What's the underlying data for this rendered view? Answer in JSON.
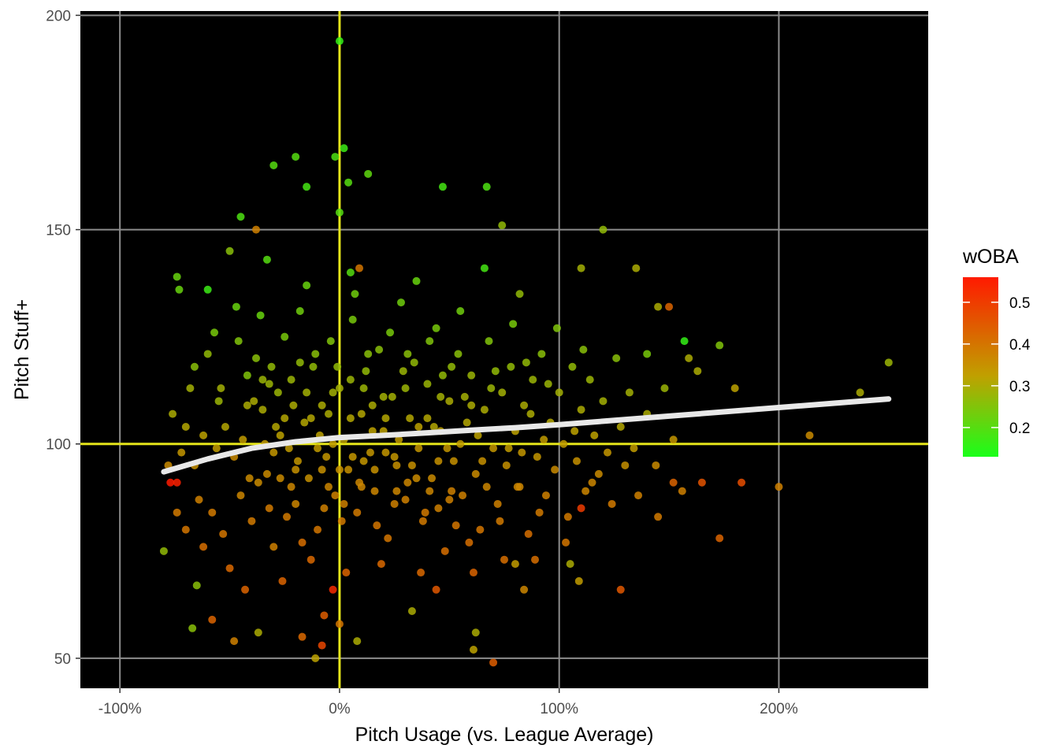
{
  "chart_data": {
    "type": "scatter",
    "xlabel": "Pitch Usage (vs. League Average)",
    "ylabel": "Pitch Stuff+",
    "xlim": [
      -1.18,
      2.68
    ],
    "ylim": [
      43,
      201
    ],
    "x_ticks": [
      {
        "value": -1,
        "label": "-100%"
      },
      {
        "value": 0,
        "label": "0%"
      },
      {
        "value": 1,
        "label": "100%"
      },
      {
        "value": 2,
        "label": "200%"
      }
    ],
    "y_ticks": [
      {
        "value": 50,
        "label": "50"
      },
      {
        "value": 100,
        "label": "100"
      },
      {
        "value": 150,
        "label": "150"
      },
      {
        "value": 200,
        "label": "200"
      }
    ],
    "grid": true,
    "background": "#000000",
    "gridline_color": "#8c8c8c",
    "reference_lines": {
      "x": 0,
      "y": 100,
      "color": "#e5e51a"
    },
    "smooth_line": {
      "color": "#e8e8e8",
      "points": [
        [
          -0.8,
          93.5
        ],
        [
          -0.6,
          96.5
        ],
        [
          -0.4,
          99.0
        ],
        [
          -0.2,
          100.5
        ],
        [
          0.0,
          101.5
        ],
        [
          0.2,
          102.0
        ],
        [
          0.4,
          102.6
        ],
        [
          0.6,
          103.2
        ],
        [
          0.8,
          103.8
        ],
        [
          1.0,
          104.5
        ],
        [
          1.2,
          105.3
        ],
        [
          1.5,
          106.5
        ],
        [
          2.0,
          108.5
        ],
        [
          2.5,
          110.5
        ]
      ]
    },
    "color_scale": {
      "title": "wOBA",
      "min": 0.13,
      "max": 0.56,
      "low_color": "#1aff1a",
      "mid_color": "#c0a000",
      "high_color": "#ff1a00",
      "ticks": [
        {
          "value": 0.2,
          "label": "0.2"
        },
        {
          "value": 0.3,
          "label": "0.3"
        },
        {
          "value": 0.4,
          "label": "0.4"
        },
        {
          "value": 0.5,
          "label": "0.5"
        }
      ]
    },
    "points": [
      [
        0.0,
        194,
        0.16
      ],
      [
        0.02,
        169,
        0.17
      ],
      [
        -0.02,
        167,
        0.19
      ],
      [
        -0.2,
        167,
        0.2
      ],
      [
        -0.3,
        165,
        0.2
      ],
      [
        0.13,
        163,
        0.21
      ],
      [
        0.04,
        161,
        0.2
      ],
      [
        -0.15,
        160,
        0.18
      ],
      [
        0.47,
        160,
        0.18
      ],
      [
        0.67,
        160,
        0.19
      ],
      [
        -0.45,
        153,
        0.19
      ],
      [
        0.0,
        154,
        0.2
      ],
      [
        0.74,
        151,
        0.27
      ],
      [
        1.2,
        150,
        0.27
      ],
      [
        -0.38,
        150,
        0.38
      ],
      [
        -0.5,
        145,
        0.26
      ],
      [
        -0.33,
        143,
        0.2
      ],
      [
        0.05,
        140,
        0.2
      ],
      [
        0.09,
        141,
        0.4
      ],
      [
        -0.74,
        139,
        0.22
      ],
      [
        -0.6,
        136,
        0.17
      ],
      [
        -0.73,
        136,
        0.22
      ],
      [
        0.66,
        141,
        0.18
      ],
      [
        0.82,
        135,
        0.27
      ],
      [
        1.1,
        141,
        0.29
      ],
      [
        1.35,
        141,
        0.3
      ],
      [
        1.45,
        132,
        0.3
      ],
      [
        1.5,
        132,
        0.43
      ],
      [
        1.57,
        124,
        0.16
      ],
      [
        1.73,
        123,
        0.25
      ],
      [
        1.4,
        121,
        0.24
      ],
      [
        1.59,
        120,
        0.3
      ],
      [
        1.63,
        117,
        0.3
      ],
      [
        1.8,
        113,
        0.32
      ],
      [
        2.37,
        112,
        0.3
      ],
      [
        2.5,
        119,
        0.28
      ],
      [
        2.14,
        102,
        0.36
      ],
      [
        2.0,
        90,
        0.38
      ],
      [
        1.83,
        91,
        0.47
      ],
      [
        1.73,
        78,
        0.43
      ],
      [
        1.65,
        91,
        0.46
      ],
      [
        1.52,
        91,
        0.43
      ],
      [
        1.28,
        66,
        0.45
      ],
      [
        1.45,
        83,
        0.39
      ],
      [
        1.1,
        85,
        0.5
      ],
      [
        -0.8,
        75,
        0.27
      ],
      [
        -0.77,
        91,
        0.56
      ],
      [
        -0.74,
        91,
        0.55
      ],
      [
        -0.67,
        57,
        0.26
      ],
      [
        -0.65,
        67,
        0.26
      ],
      [
        -0.58,
        59,
        0.43
      ],
      [
        -0.48,
        54,
        0.38
      ],
      [
        -0.37,
        56,
        0.3
      ],
      [
        -0.11,
        50,
        0.32
      ],
      [
        -0.08,
        53,
        0.48
      ],
      [
        -0.17,
        55,
        0.42
      ],
      [
        -0.07,
        60,
        0.44
      ],
      [
        0.0,
        58,
        0.4
      ],
      [
        0.08,
        54,
        0.3
      ],
      [
        0.62,
        56,
        0.3
      ],
      [
        0.61,
        52,
        0.32
      ],
      [
        0.7,
        49,
        0.44
      ],
      [
        -0.03,
        66,
        0.53
      ],
      [
        0.33,
        61,
        0.3
      ],
      [
        0.44,
        66,
        0.45
      ],
      [
        0.8,
        72,
        0.33
      ],
      [
        0.84,
        66,
        0.37
      ],
      [
        1.05,
        72,
        0.3
      ],
      [
        1.09,
        68,
        0.33
      ],
      [
        -0.55,
        110,
        0.28
      ],
      [
        -0.52,
        104,
        0.31
      ],
      [
        -0.48,
        97,
        0.36
      ],
      [
        -0.45,
        88,
        0.37
      ],
      [
        -0.42,
        116,
        0.25
      ],
      [
        -0.4,
        82,
        0.39
      ],
      [
        -0.38,
        120,
        0.26
      ],
      [
        -0.35,
        108,
        0.3
      ],
      [
        -0.33,
        93,
        0.36
      ],
      [
        -0.3,
        76,
        0.38
      ],
      [
        -0.28,
        112,
        0.28
      ],
      [
        -0.25,
        125,
        0.24
      ],
      [
        -0.23,
        99,
        0.33
      ],
      [
        -0.2,
        86,
        0.37
      ],
      [
        -0.18,
        131,
        0.23
      ],
      [
        -0.16,
        105,
        0.31
      ],
      [
        -0.14,
        92,
        0.35
      ],
      [
        -0.12,
        118,
        0.27
      ],
      [
        -0.1,
        80,
        0.4
      ],
      [
        -0.08,
        109,
        0.3
      ],
      [
        -0.06,
        97,
        0.34
      ],
      [
        -0.04,
        124,
        0.25
      ],
      [
        -0.02,
        88,
        0.38
      ],
      [
        0.0,
        113,
        0.29
      ],
      [
        0.02,
        101,
        0.32
      ],
      [
        0.04,
        94,
        0.35
      ],
      [
        0.06,
        129,
        0.24
      ],
      [
        0.08,
        84,
        0.39
      ],
      [
        0.1,
        107,
        0.31
      ],
      [
        0.12,
        117,
        0.27
      ],
      [
        0.14,
        98,
        0.34
      ],
      [
        0.16,
        89,
        0.37
      ],
      [
        0.18,
        122,
        0.26
      ],
      [
        0.2,
        103,
        0.32
      ],
      [
        0.22,
        78,
        0.4
      ],
      [
        0.24,
        111,
        0.29
      ],
      [
        0.26,
        95,
        0.35
      ],
      [
        0.28,
        133,
        0.23
      ],
      [
        0.3,
        87,
        0.38
      ],
      [
        0.32,
        106,
        0.31
      ],
      [
        0.34,
        119,
        0.27
      ],
      [
        0.36,
        99,
        0.34
      ],
      [
        0.38,
        82,
        0.39
      ],
      [
        0.4,
        114,
        0.28
      ],
      [
        0.42,
        92,
        0.36
      ],
      [
        0.44,
        127,
        0.24
      ],
      [
        0.46,
        103,
        0.32
      ],
      [
        0.48,
        75,
        0.41
      ],
      [
        0.5,
        110,
        0.3
      ],
      [
        0.52,
        96,
        0.35
      ],
      [
        0.54,
        121,
        0.26
      ],
      [
        0.56,
        88,
        0.38
      ],
      [
        0.58,
        105,
        0.31
      ],
      [
        0.6,
        116,
        0.28
      ],
      [
        0.62,
        93,
        0.36
      ],
      [
        0.64,
        80,
        0.4
      ],
      [
        0.66,
        108,
        0.3
      ],
      [
        0.68,
        124,
        0.25
      ],
      [
        0.7,
        99,
        0.34
      ],
      [
        0.72,
        86,
        0.38
      ],
      [
        0.74,
        112,
        0.29
      ],
      [
        0.76,
        95,
        0.35
      ],
      [
        0.78,
        118,
        0.27
      ],
      [
        0.8,
        103,
        0.32
      ],
      [
        0.82,
        90,
        0.37
      ],
      [
        0.84,
        109,
        0.3
      ],
      [
        0.86,
        79,
        0.41
      ],
      [
        0.88,
        115,
        0.28
      ],
      [
        0.9,
        97,
        0.34
      ],
      [
        0.92,
        121,
        0.26
      ],
      [
        0.94,
        88,
        0.38
      ],
      [
        0.96,
        105,
        0.31
      ],
      [
        0.98,
        94,
        0.36
      ],
      [
        1.0,
        112,
        0.29
      ],
      [
        1.02,
        100,
        0.33
      ],
      [
        1.04,
        83,
        0.39
      ],
      [
        1.06,
        118,
        0.27
      ],
      [
        1.08,
        96,
        0.35
      ],
      [
        1.1,
        108,
        0.3
      ],
      [
        1.12,
        89,
        0.37
      ],
      [
        1.14,
        115,
        0.28
      ],
      [
        1.16,
        102,
        0.32
      ],
      [
        1.18,
        93,
        0.36
      ],
      [
        1.2,
        110,
        0.29
      ],
      [
        1.22,
        98,
        0.34
      ],
      [
        1.24,
        86,
        0.39
      ],
      [
        1.26,
        120,
        0.26
      ],
      [
        1.28,
        104,
        0.31
      ],
      [
        1.3,
        95,
        0.35
      ],
      [
        1.32,
        112,
        0.29
      ],
      [
        1.34,
        99,
        0.33
      ],
      [
        1.36,
        88,
        0.38
      ],
      [
        1.4,
        107,
        0.3
      ],
      [
        1.44,
        95,
        0.36
      ],
      [
        1.48,
        113,
        0.28
      ],
      [
        1.52,
        101,
        0.34
      ],
      [
        1.56,
        89,
        0.38
      ],
      [
        -0.6,
        121,
        0.27
      ],
      [
        -0.58,
        84,
        0.39
      ],
      [
        -0.56,
        99,
        0.33
      ],
      [
        -0.54,
        113,
        0.29
      ],
      [
        -0.5,
        71,
        0.42
      ],
      [
        -0.46,
        124,
        0.25
      ],
      [
        -0.44,
        101,
        0.33
      ],
      [
        -0.41,
        92,
        0.36
      ],
      [
        -0.36,
        130,
        0.22
      ],
      [
        -0.32,
        85,
        0.39
      ],
      [
        -0.29,
        104,
        0.31
      ],
      [
        -0.26,
        68,
        0.43
      ],
      [
        -0.22,
        115,
        0.28
      ],
      [
        -0.19,
        96,
        0.34
      ],
      [
        -0.15,
        137,
        0.22
      ],
      [
        -0.13,
        73,
        0.42
      ],
      [
        -0.09,
        102,
        0.32
      ],
      [
        -0.05,
        90,
        0.37
      ],
      [
        -0.01,
        118,
        0.27
      ],
      [
        0.03,
        70,
        0.43
      ],
      [
        0.07,
        135,
        0.23
      ],
      [
        0.11,
        96,
        0.34
      ],
      [
        0.15,
        109,
        0.3
      ],
      [
        0.19,
        72,
        0.42
      ],
      [
        0.23,
        126,
        0.24
      ],
      [
        0.27,
        101,
        0.33
      ],
      [
        0.31,
        91,
        0.37
      ],
      [
        0.35,
        138,
        0.22
      ],
      [
        0.39,
        84,
        0.39
      ],
      [
        0.43,
        104,
        0.31
      ],
      [
        0.47,
        116,
        0.27
      ],
      [
        0.51,
        89,
        0.38
      ],
      [
        0.55,
        131,
        0.23
      ],
      [
        0.59,
        77,
        0.41
      ],
      [
        0.63,
        102,
        0.32
      ],
      [
        0.67,
        90,
        0.37
      ],
      [
        0.71,
        117,
        0.27
      ],
      [
        0.75,
        73,
        0.41
      ],
      [
        0.79,
        128,
        0.24
      ],
      [
        0.83,
        98,
        0.34
      ],
      [
        0.87,
        107,
        0.3
      ],
      [
        0.91,
        84,
        0.39
      ],
      [
        0.95,
        114,
        0.28
      ],
      [
        0.99,
        127,
        0.25
      ],
      [
        1.03,
        77,
        0.4
      ],
      [
        1.07,
        103,
        0.32
      ],
      [
        1.11,
        122,
        0.26
      ],
      [
        1.15,
        91,
        0.37
      ],
      [
        -0.7,
        104,
        0.31
      ],
      [
        -0.68,
        113,
        0.29
      ],
      [
        -0.66,
        95,
        0.35
      ],
      [
        -0.64,
        87,
        0.38
      ],
      [
        -0.62,
        102,
        0.32
      ],
      [
        -0.72,
        98,
        0.34
      ],
      [
        -0.76,
        107,
        0.3
      ],
      [
        -0.78,
        95,
        0.36
      ],
      [
        -0.74,
        84,
        0.39
      ],
      [
        -0.7,
        80,
        0.4
      ],
      [
        -0.66,
        118,
        0.26
      ],
      [
        -0.62,
        76,
        0.41
      ],
      [
        -0.57,
        126,
        0.24
      ],
      [
        -0.53,
        79,
        0.4
      ],
      [
        -0.47,
        132,
        0.22
      ],
      [
        -0.43,
        66,
        0.43
      ],
      [
        -0.39,
        110,
        0.3
      ],
      [
        -0.34,
        100,
        0.33
      ],
      [
        -0.31,
        118,
        0.27
      ],
      [
        -0.27,
        92,
        0.36
      ],
      [
        -0.24,
        83,
        0.39
      ],
      [
        -0.21,
        109,
        0.3
      ],
      [
        -0.17,
        77,
        0.41
      ],
      [
        -0.11,
        121,
        0.26
      ],
      [
        -0.07,
        85,
        0.38
      ],
      [
        -0.03,
        100,
        0.33
      ],
      [
        0.01,
        82,
        0.39
      ],
      [
        0.05,
        106,
        0.31
      ],
      [
        0.09,
        91,
        0.37
      ],
      [
        0.13,
        121,
        0.26
      ],
      [
        0.17,
        81,
        0.4
      ],
      [
        0.21,
        98,
        0.34
      ],
      [
        0.25,
        86,
        0.38
      ],
      [
        0.29,
        117,
        0.28
      ],
      [
        0.33,
        95,
        0.35
      ],
      [
        0.37,
        70,
        0.42
      ],
      [
        0.41,
        124,
        0.25
      ],
      [
        0.45,
        85,
        0.38
      ],
      [
        0.49,
        99,
        0.34
      ],
      [
        0.53,
        81,
        0.4
      ],
      [
        0.57,
        111,
        0.29
      ],
      [
        0.61,
        70,
        0.43
      ],
      [
        0.65,
        96,
        0.35
      ],
      [
        0.69,
        113,
        0.28
      ],
      [
        0.73,
        82,
        0.39
      ],
      [
        0.77,
        99,
        0.33
      ],
      [
        0.81,
        90,
        0.37
      ],
      [
        0.85,
        119,
        0.27
      ],
      [
        0.89,
        73,
        0.41
      ],
      [
        0.93,
        101,
        0.33
      ],
      [
        -0.35,
        115,
        0.28
      ],
      [
        -0.3,
        98,
        0.34
      ],
      [
        -0.25,
        106,
        0.31
      ],
      [
        -0.2,
        94,
        0.35
      ],
      [
        -0.15,
        112,
        0.29
      ],
      [
        -0.1,
        99,
        0.33
      ],
      [
        -0.05,
        107,
        0.3
      ],
      [
        0.0,
        94,
        0.35
      ],
      [
        0.05,
        115,
        0.28
      ],
      [
        0.1,
        90,
        0.37
      ],
      [
        0.15,
        103,
        0.32
      ],
      [
        0.2,
        111,
        0.29
      ],
      [
        0.25,
        97,
        0.34
      ],
      [
        0.3,
        113,
        0.28
      ],
      [
        0.35,
        92,
        0.36
      ],
      [
        0.4,
        106,
        0.31
      ],
      [
        0.45,
        96,
        0.35
      ],
      [
        0.5,
        87,
        0.38
      ],
      [
        0.55,
        100,
        0.33
      ],
      [
        0.6,
        109,
        0.3
      ],
      [
        -0.42,
        109,
        0.3
      ],
      [
        -0.37,
        91,
        0.36
      ],
      [
        -0.32,
        114,
        0.28
      ],
      [
        -0.27,
        102,
        0.32
      ],
      [
        -0.22,
        90,
        0.37
      ],
      [
        -0.18,
        119,
        0.27
      ],
      [
        -0.13,
        106,
        0.31
      ],
      [
        -0.08,
        94,
        0.35
      ],
      [
        -0.03,
        112,
        0.29
      ],
      [
        0.02,
        86,
        0.38
      ],
      [
        0.06,
        97,
        0.34
      ],
      [
        0.11,
        113,
        0.28
      ],
      [
        0.16,
        94,
        0.35
      ],
      [
        0.21,
        106,
        0.31
      ],
      [
        0.26,
        89,
        0.37
      ],
      [
        0.31,
        121,
        0.26
      ],
      [
        0.36,
        104,
        0.32
      ],
      [
        0.41,
        89,
        0.37
      ],
      [
        0.46,
        111,
        0.29
      ],
      [
        0.51,
        118,
        0.27
      ]
    ]
  }
}
